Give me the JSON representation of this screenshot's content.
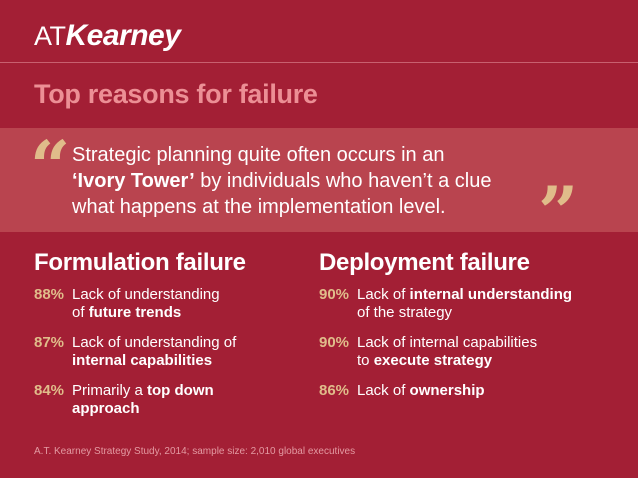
{
  "logo": {
    "prefix": "AT",
    "name": "Kearney"
  },
  "title": "Top reasons for failure",
  "quote": {
    "open_mark": "“",
    "close_mark": "”",
    "line1": "Strategic planning quite often occurs in an",
    "line2_bold": "‘Ivory Tower’",
    "line2_rest": " by individuals who haven’t a clue",
    "line3": "what happens at the implementation level."
  },
  "formulation": {
    "heading": "Formulation failure",
    "items": [
      {
        "pct": "88%",
        "pre": "Lack of understanding",
        "pre2": "of ",
        "bold": "future trends",
        "post": ""
      },
      {
        "pct": "87%",
        "pre": "Lack of understanding of",
        "pre2": "",
        "bold": "internal capabilities",
        "post": ""
      },
      {
        "pct": "84%",
        "pre": "Primarily a ",
        "pre2": "",
        "bold": "top down approach",
        "post": ""
      }
    ]
  },
  "deployment": {
    "heading": "Deployment failure",
    "items": [
      {
        "pct": "90%",
        "pre": "Lack of ",
        "bold": "internal understanding",
        "post": "of the strategy"
      },
      {
        "pct": "90%",
        "pre": "Lack of internal capabilities",
        "pre2": "to ",
        "bold": "execute strategy",
        "post": ""
      },
      {
        "pct": "86%",
        "pre": "Lack of ",
        "bold": "ownership",
        "post": ""
      }
    ]
  },
  "footer": "A.T. Kearney Strategy Study, 2014; sample size: 2,010 global executives"
}
